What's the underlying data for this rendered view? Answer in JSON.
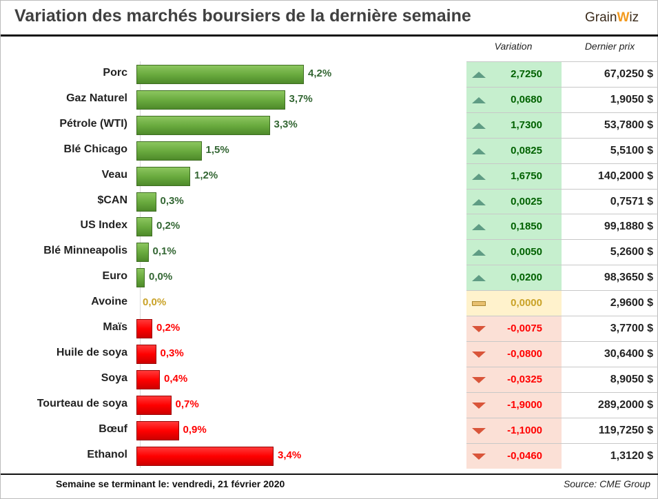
{
  "header": {
    "title": "Variation des marchés boursiers de la dernière semaine",
    "logo": "GrainWiz",
    "col_variation": "Variation",
    "col_price": "Dernier prix"
  },
  "colors": {
    "up": "#336633",
    "down": "#ff0000",
    "flat": "#c9a227",
    "up_bg": "#c6efce",
    "flat_bg": "#fff2cc",
    "down_bg": "#fbe0d6"
  },
  "chart_data": {
    "type": "bar",
    "title": "Variation des marchés boursiers de la dernière semaine",
    "categories": [
      "Porc",
      "Gaz Naturel",
      "Pétrole (WTI)",
      "Blé Chicago",
      "Veau",
      "$CAN",
      "US Index",
      "Blé Minneapolis",
      "Euro",
      "Avoine",
      "Maïs",
      "Huile de soya",
      "Soya",
      "Tourteau de soya",
      "Bœuf",
      "Ethanol"
    ],
    "labels": [
      "4,2%",
      "3,7%",
      "3,3%",
      "1,5%",
      "1,2%",
      "0,3%",
      "0,2%",
      "0,1%",
      "0,0%",
      "0,0%",
      "0,2%",
      "0,3%",
      "0,4%",
      "0,7%",
      "0,9%",
      "3,4%"
    ],
    "values": [
      4.2,
      3.7,
      3.3,
      1.5,
      1.2,
      0.3,
      0.2,
      0.1,
      0.0,
      0.0,
      -0.2,
      -0.3,
      -0.4,
      -0.7,
      -0.9,
      -3.4
    ],
    "direction": [
      "up",
      "up",
      "up",
      "up",
      "up",
      "up",
      "up",
      "up",
      "up",
      "flat",
      "down",
      "down",
      "down",
      "down",
      "down",
      "down"
    ],
    "unit": "%"
  },
  "table": {
    "variation": [
      "2,7250",
      "0,0680",
      "1,7300",
      "0,0825",
      "1,6750",
      "0,0025",
      "0,1850",
      "0,0050",
      "0,0200",
      "0,0000",
      "-0,0075",
      "-0,0800",
      "-0,0325",
      "-1,9000",
      "-1,1000",
      "-0,0460"
    ],
    "price": [
      "67,0250 $",
      "1,9050 $",
      "53,7800 $",
      "5,5100 $",
      "140,2000 $",
      "0,7571 $",
      "99,1880 $",
      "5,2600 $",
      "98,3650 $",
      "2,9600 $",
      "3,7700 $",
      "30,6400 $",
      "8,9050 $",
      "289,2000 $",
      "119,7250 $",
      "1,3120 $"
    ]
  },
  "footer": {
    "week_label": "Semaine se terminant le:  vendredi, 21 février 2020",
    "source": "Source: CME Group"
  }
}
